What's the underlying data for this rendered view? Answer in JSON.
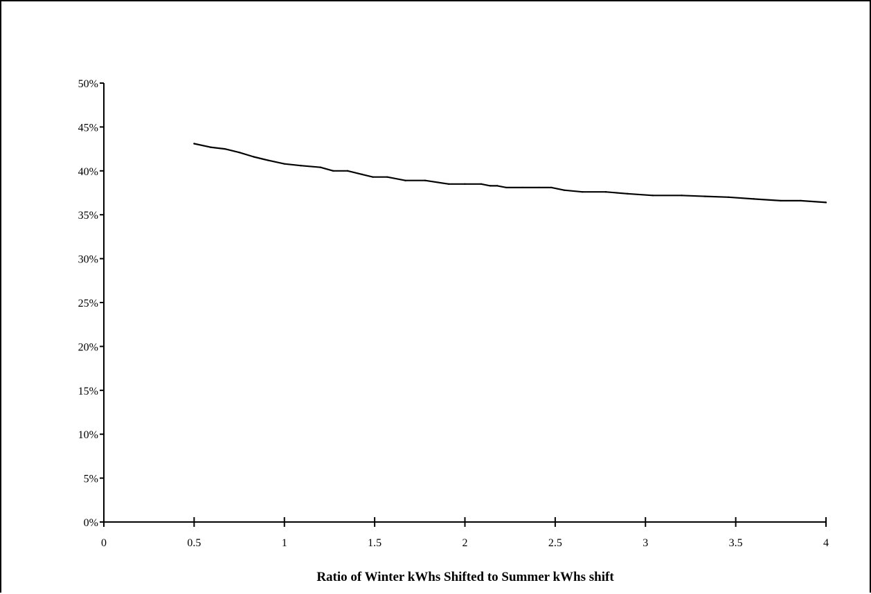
{
  "chart_data": {
    "type": "line",
    "title": "",
    "xlabel": "Ratio of Winter kWhs Shifted to Summer kWhs shift",
    "ylabel": "",
    "xlim": [
      0,
      4
    ],
    "ylim": [
      0,
      0.5
    ],
    "x_ticks": [
      "0",
      "0.5",
      "1",
      "1.5",
      "2",
      "2.5",
      "3",
      "3.5",
      "4"
    ],
    "y_ticks": [
      "0%",
      "5%",
      "10%",
      "15%",
      "20%",
      "25%",
      "30%",
      "35%",
      "40%",
      "45%",
      "50%"
    ],
    "grid": false,
    "legend": "none",
    "line_color": "#000000",
    "series": [
      {
        "x": [
          0.5,
          0.59,
          0.67,
          0.75,
          0.83,
          0.91,
          1.0,
          1.09,
          1.2,
          1.27,
          1.35,
          1.43,
          1.49,
          1.57,
          1.67,
          1.78,
          1.91,
          2.0,
          2.09,
          2.14,
          2.18,
          2.23,
          2.32,
          2.41,
          2.48,
          2.55,
          2.65,
          2.78,
          2.9,
          3.04,
          3.2,
          3.33,
          3.46,
          3.6,
          3.75,
          3.86,
          4.0
        ],
        "values": [
          0.431,
          0.427,
          0.425,
          0.421,
          0.416,
          0.412,
          0.408,
          0.406,
          0.404,
          0.4,
          0.4,
          0.396,
          0.393,
          0.393,
          0.389,
          0.389,
          0.385,
          0.385,
          0.385,
          0.383,
          0.383,
          0.381,
          0.381,
          0.381,
          0.381,
          0.378,
          0.376,
          0.376,
          0.374,
          0.372,
          0.372,
          0.371,
          0.37,
          0.368,
          0.366,
          0.366,
          0.364
        ]
      }
    ]
  }
}
